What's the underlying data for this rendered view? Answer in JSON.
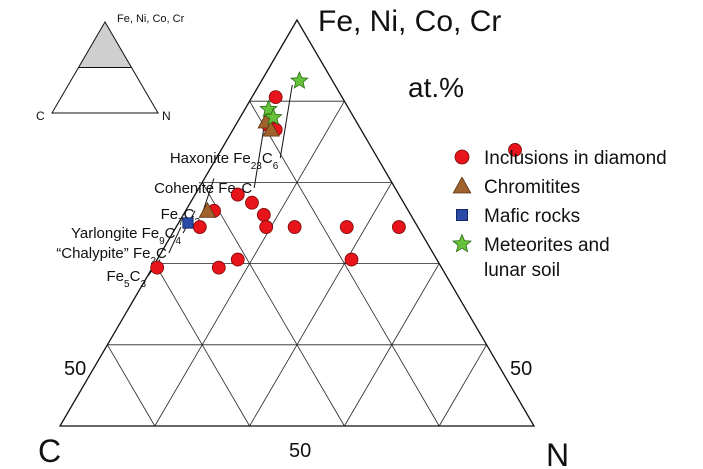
{
  "chart_data": {
    "type": "scatter",
    "subtype": "ternary",
    "title": "",
    "units": "at.%",
    "vertices": {
      "top": "Fe, Ni, Co, Cr",
      "left": "C",
      "right": "N"
    },
    "tick_labels": {
      "left_edge": "50",
      "right_edge": "50",
      "bottom_edge": "50"
    },
    "grid": true,
    "grid_step": 10,
    "shown_range": {
      "metal_min": 50,
      "metal_max": 100
    },
    "inset": {
      "labels": {
        "top": "Fe, Ni, Co, Cr",
        "left": "C",
        "right": "N"
      },
      "shaded": "metal 50-100 at.%"
    },
    "legend_position": "right",
    "series": [
      {
        "name": "Inclusions in diamond",
        "marker": "circle",
        "color": "#e8141b",
        "points": [
          {
            "metal": 90.5,
            "N": 2.5
          },
          {
            "metal": 87.0,
            "N": 3.5
          },
          {
            "metal": 86.5,
            "N": 4.5
          },
          {
            "metal": 78.5,
            "N": 4.5
          },
          {
            "metal": 77.5,
            "N": 6.5
          },
          {
            "metal": 76.5,
            "N": 3.0
          },
          {
            "metal": 76.0,
            "N": 8.5
          },
          {
            "metal": 74.5,
            "N": 2.5
          },
          {
            "metal": 74.5,
            "N": 9.5
          },
          {
            "metal": 74.5,
            "N": 12.5
          },
          {
            "metal": 74.5,
            "N": 18.0
          },
          {
            "metal": 74.5,
            "N": 23.5
          },
          {
            "metal": 70.5,
            "N": 8.5
          },
          {
            "metal": 70.5,
            "N": 20.5
          },
          {
            "metal": 69.5,
            "N": 0.5
          },
          {
            "metal": 69.5,
            "N": 7.0
          },
          {
            "metal": 84.0,
            "N": 31.0
          }
        ]
      },
      {
        "name": "Chromitites",
        "marker": "triangle",
        "color": "#a0622d",
        "points": [
          {
            "metal": 87.5,
            "N": 3.0
          },
          {
            "metal": 86.5,
            "N": 4.0
          },
          {
            "metal": 76.5,
            "N": 2.3
          }
        ]
      },
      {
        "name": "Mafic rocks",
        "marker": "square",
        "color": "#2a4aa8",
        "points": [
          {
            "metal": 75.0,
            "N": 1.0
          }
        ]
      },
      {
        "name": "Meteorites and lunar soil",
        "name_lines": [
          "Meteorites and",
          "lunar soil"
        ],
        "marker": "star",
        "color": "#66c23a",
        "points": [
          {
            "metal": 92.5,
            "N": 4.0
          },
          {
            "metal": 89.0,
            "N": 2.5
          },
          {
            "metal": 88.0,
            "N": 3.5
          }
        ]
      }
    ],
    "annotations": [
      {
        "text": "Haxonite Fe",
        "sub": "23",
        "text2": "C",
        "sub2": "6",
        "metal": 92.0,
        "N": 3.5
      },
      {
        "text": "Cohenite Fe",
        "sub": "3",
        "text2": "C",
        "sub2": "",
        "metal": 88.5,
        "N": 2.5
      },
      {
        "text": "Fe",
        "sub": "7",
        "text2": "C",
        "sub2": "3",
        "metal": 80.5,
        "N": 1.0
      },
      {
        "text": "Yarlongite Fe",
        "sub": "9",
        "text2": "C",
        "sub2": "4",
        "metal": 76.5,
        "N": 1.0
      },
      {
        "text": "“Chalypite” Fe",
        "sub": "2",
        "text2": "C",
        "sub2": "",
        "metal": 74.5,
        "N": 0.5
      },
      {
        "text": "Fe",
        "sub": "5",
        "text2": "C",
        "sub2": "3",
        "metal": 70.5,
        "N": 0.3
      }
    ]
  }
}
